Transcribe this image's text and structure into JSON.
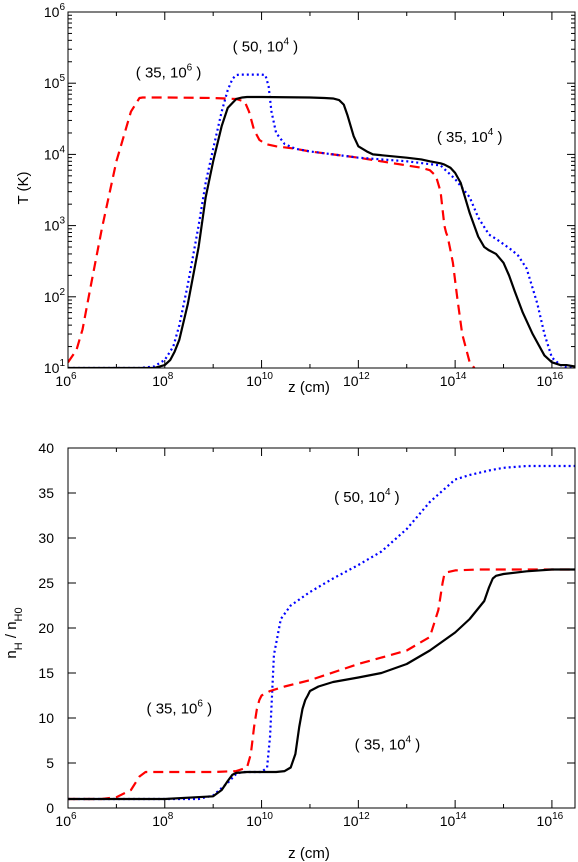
{
  "chart_data": [
    {
      "type": "line",
      "xlabel": "z (cm)",
      "ylabel": "T (K)",
      "x_scale": "log",
      "y_scale": "log",
      "xlim": [
        1000000.0,
        3e+16
      ],
      "ylim": [
        10,
        1000000.0
      ],
      "x_ticks": [
        {
          "base": "10",
          "exp": "6",
          "value": 1000000.0
        },
        {
          "base": "10",
          "exp": "8",
          "value": 100000000.0
        },
        {
          "base": "10",
          "exp": "10",
          "value": 10000000000.0
        },
        {
          "base": "10",
          "exp": "12",
          "value": 1000000000000.0
        },
        {
          "base": "10",
          "exp": "14",
          "value": 100000000000000.0
        },
        {
          "base": "10",
          "exp": "16",
          "value": 1e+16
        }
      ],
      "y_ticks": [
        {
          "base": "10",
          "exp": "1",
          "value": 10
        },
        {
          "base": "10",
          "exp": "2",
          "value": 100
        },
        {
          "base": "10",
          "exp": "3",
          "value": 1000
        },
        {
          "base": "10",
          "exp": "4",
          "value": 10000
        },
        {
          "base": "10",
          "exp": "5",
          "value": 100000
        },
        {
          "base": "10",
          "exp": "6",
          "value": 1000000
        }
      ],
      "annotations": [
        {
          "pre": "( 50, 10",
          "sup": "4",
          "post": " )",
          "x": 12000000000.0,
          "y": 280000
        },
        {
          "pre": "( 35, 10",
          "sup": "6",
          "post": " )",
          "x": 120000000.0,
          "y": 120000
        },
        {
          "pre": "( 35, 10",
          "sup": "4",
          "post": " )",
          "x": 200000000000000.0,
          "y": 15000
        }
      ],
      "series": [
        {
          "color": "#ff0000",
          "dash": "10,6",
          "x": [
            1000000.0,
            1500000.0,
            2000000.0,
            3000000.0,
            5000000.0,
            10000000.0,
            20000000.0,
            30000000.0,
            35000000.0,
            50000000.0,
            100000000.0,
            1000000000.0,
            3000000000.0,
            4500000000.0,
            5500000000.0,
            7000000000.0,
            9000000000.0,
            12000000000.0,
            20000000000.0,
            50000000000.0,
            100000000000.0,
            1000000000000.0,
            10000000000000.0,
            20000000000000.0,
            30000000000000.0,
            40000000000000.0,
            50000000000000.0,
            60000000000000.0,
            65000000000000.0,
            70000000000000.0,
            80000000000000.0,
            90000000000000.0,
            110000000000000.0,
            140000000000000.0,
            200000000000000.0,
            250000000000000.0
          ],
          "y": [
            12,
            18,
            35,
            150,
            900,
            8000,
            40000,
            62000,
            63000,
            63000,
            63000,
            62000,
            60000,
            55000,
            40000,
            22000,
            16000,
            14000,
            13000,
            12000,
            11000,
            9000,
            7000,
            6500,
            6000,
            5000,
            3000,
            1000,
            800,
            700,
            450,
            300,
            100,
            30,
            12,
            10
          ]
        },
        {
          "color": "#0000ff",
          "dash": "2,3",
          "x": [
            1000000.0,
            30000000.0,
            60000000.0,
            100000000.0,
            150000000.0,
            200000000.0,
            300000000.0,
            500000000.0,
            700000000.0,
            1000000000.0,
            1500000000.0,
            2000000000.0,
            2500000000.0,
            3000000000.0,
            3500000000.0,
            4000000000.0,
            5000000000.0,
            10000000000.0,
            12000000000.0,
            14000000000.0,
            16000000000.0,
            20000000000.0,
            30000000000.0,
            50000000000.0,
            100000000000.0,
            1000000000000.0,
            10000000000000.0,
            50000000000000.0,
            100000000000000.0,
            200000000000000.0,
            300000000000000.0,
            500000000000000.0,
            700000000000000.0,
            1000000000000000.0,
            1500000000000000.0,
            2000000000000000.0,
            3000000000000000.0,
            5000000000000000.0,
            7000000000000000.0,
            1e+16,
            1.5e+16,
            2e+16,
            3e+16
          ],
          "y": [
            10,
            10,
            10.5,
            13,
            20,
            40,
            150,
            1000,
            4000,
            12000,
            40000,
            80000,
            115000,
            130000,
            132000,
            132000,
            132000,
            132000,
            130000,
            90000,
            40000,
            20000,
            14000,
            12000,
            11000,
            9000,
            8000,
            7000,
            4500,
            2500,
            1300,
            750,
            650,
            550,
            450,
            380,
            250,
            80,
            30,
            14,
            11,
            10.2,
            10
          ]
        },
        {
          "color": "#000000",
          "dash": "",
          "x": [
            1000000.0,
            60000000.0,
            100000000.0,
            130000000.0,
            160000000.0,
            200000000.0,
            300000000.0,
            500000000.0,
            700000000.0,
            1000000000.0,
            1500000000.0,
            2000000000.0,
            3000000000.0,
            4000000000.0,
            5000000000.0,
            10000000000.0,
            100000000000.0,
            200000000000.0,
            300000000000.0,
            400000000000.0,
            500000000000.0,
            600000000000.0,
            800000000000.0,
            1000000000000.0,
            1500000000000.0,
            2000000000000.0,
            10000000000000.0,
            20000000000000.0,
            30000000000000.0,
            40000000000000.0,
            50000000000000.0,
            60000000000000.0,
            80000000000000.0,
            100000000000000.0,
            130000000000000.0,
            160000000000000.0,
            200000000000000.0,
            300000000000000.0,
            400000000000000.0,
            500000000000000.0,
            700000000000000.0,
            1000000000000000.0,
            1300000000000000.0,
            1700000000000000.0,
            2500000000000000.0,
            4000000000000000.0,
            7000000000000000.0,
            1e+16,
            1.5e+16,
            2e+16,
            3e+16
          ],
          "y": [
            10,
            10,
            11,
            13,
            17,
            25,
            80,
            500,
            2500,
            8000,
            25000,
            45000,
            60000,
            63000,
            64000,
            64000,
            63000,
            62000,
            61000,
            58000,
            50000,
            35000,
            18000,
            13000,
            11000,
            10000,
            9000,
            8500,
            8000,
            7700,
            7500,
            7200,
            6500,
            5500,
            4000,
            2500,
            1500,
            700,
            500,
            450,
            400,
            300,
            200,
            120,
            60,
            30,
            15,
            12,
            11,
            11,
            10.5
          ]
        }
      ]
    },
    {
      "type": "line",
      "xlabel": "z (cm)",
      "ylabel_parts": {
        "n": "n",
        "sub1": "H",
        "slash": " / n",
        "sub2": "H0"
      },
      "x_scale": "log",
      "y_scale": "linear",
      "xlim": [
        1000000.0,
        3e+16
      ],
      "ylim": [
        0,
        40
      ],
      "x_ticks": [
        {
          "base": "10",
          "exp": "6",
          "value": 1000000.0
        },
        {
          "base": "10",
          "exp": "8",
          "value": 100000000.0
        },
        {
          "base": "10",
          "exp": "10",
          "value": 10000000000.0
        },
        {
          "base": "10",
          "exp": "12",
          "value": 1000000000000.0
        },
        {
          "base": "10",
          "exp": "14",
          "value": 100000000000000.0
        },
        {
          "base": "10",
          "exp": "16",
          "value": 1e+16
        }
      ],
      "y_ticks": [
        "0",
        "5",
        "10",
        "15",
        "20",
        "25",
        "30",
        "35",
        "40"
      ],
      "annotations": [
        {
          "pre": "( 50, 10",
          "sup": "4",
          "post": " )",
          "x": 1500000000000.0,
          "y": 34
        },
        {
          "pre": "( 35, 10",
          "sup": "6",
          "post": " )",
          "x": 200000000.0,
          "y": 10.5
        },
        {
          "pre": "( 35, 10",
          "sup": "4",
          "post": " )",
          "x": 4000000000000.0,
          "y": 6.5
        }
      ],
      "series": [
        {
          "color": "#0000ff",
          "dash": "2,3",
          "x": [
            1000000.0,
            5000000.0,
            10000000.0,
            20000000.0,
            50000000.0,
            100000000.0,
            200000000.0,
            500000000.0,
            1000000000.0,
            2000000000.0,
            3000000000.0,
            4000000000.0,
            6000000000.0,
            10000000000.0,
            13000000000.0,
            15000000000.0,
            18000000000.0,
            25000000000.0,
            40000000000.0,
            100000000000.0,
            300000000000.0,
            1000000000000.0,
            3000000000000.0,
            10000000000000.0,
            30000000000000.0,
            100000000000000.0,
            200000000000000.0,
            500000000000000.0,
            1000000000000000.0,
            3000000000000000.0,
            1e+16,
            3e+16
          ],
          "y": [
            1,
            1,
            1,
            1,
            1,
            1,
            1,
            1,
            1.4,
            2.8,
            3.8,
            4,
            4,
            4,
            4.5,
            8,
            17,
            21,
            22.5,
            24,
            25.5,
            27,
            28.5,
            31,
            34,
            36.5,
            37,
            37.5,
            37.8,
            38,
            38,
            38
          ]
        },
        {
          "color": "#ff0000",
          "dash": "10,6",
          "x": [
            1000000.0,
            5000000.0,
            10000000.0,
            20000000.0,
            30000000.0,
            40000000.0,
            100000000.0,
            1000000000.0,
            3000000000.0,
            5000000000.0,
            6000000000.0,
            7000000000.0,
            8000000000.0,
            9000000000.0,
            10000000000.0,
            15000000000.0,
            30000000000.0,
            100000000000.0,
            1000000000000.0,
            10000000000000.0,
            30000000000000.0,
            45000000000000.0,
            55000000000000.0,
            60000000000000.0,
            70000000000000.0,
            100000000000000.0,
            300000000000000.0,
            1000000000000000.0,
            1e+16,
            3e+16
          ],
          "y": [
            1,
            1,
            1.2,
            2,
            3.5,
            4,
            4,
            4,
            4.1,
            4.5,
            6,
            9,
            11,
            12,
            12.5,
            13,
            13.5,
            14.2,
            16,
            17.5,
            19,
            22,
            25,
            26,
            26.2,
            26.4,
            26.5,
            26.5,
            26.5,
            26.5
          ]
        },
        {
          "color": "#000000",
          "dash": "",
          "x": [
            1000000.0,
            100000000.0,
            1000000000.0,
            1500000000.0,
            2000000000.0,
            2500000000.0,
            3000000000.0,
            5000000000.0,
            10000000000.0,
            20000000000.0,
            30000000000.0,
            40000000000.0,
            50000000000.0,
            60000000000.0,
            70000000000.0,
            80000000000.0,
            90000000000.0,
            100000000000.0,
            150000000000.0,
            300000000000.0,
            1000000000000.0,
            3000000000000.0,
            10000000000000.0,
            30000000000000.0,
            100000000000000.0,
            200000000000000.0,
            400000000000000.0,
            500000000000000.0,
            600000000000000.0,
            700000000000000.0,
            1000000000000000.0,
            3000000000000000.0,
            1e+16,
            3e+16
          ],
          "y": [
            1,
            1,
            1.3,
            2,
            3,
            3.7,
            3.9,
            4,
            4,
            4,
            4.1,
            4.5,
            6,
            9,
            11,
            12,
            12.5,
            13,
            13.5,
            14,
            14.5,
            15,
            16,
            17.5,
            19.5,
            21,
            23,
            24.5,
            25.5,
            25.8,
            26,
            26.3,
            26.5,
            26.5
          ]
        }
      ]
    }
  ]
}
